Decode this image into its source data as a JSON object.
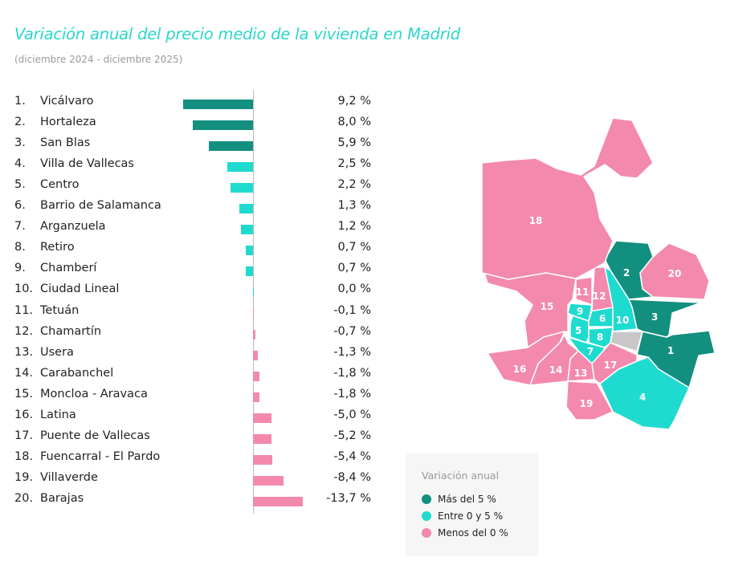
{
  "title": "Variación anual del precio medio de la vivienda en Madrid",
  "subtitle": "(diciembre 2024 - diciembre 2025)",
  "colors": {
    "mas_5": "#138f80",
    "entre_0_5": "#1fdbcf",
    "menos_0": "#f389ad",
    "sin_dato": "#c8c6c6",
    "title": "#2ad6cb"
  },
  "chart_data": {
    "type": "bar",
    "orientation": "horizontal",
    "categories": [
      "Vicálvaro",
      "Hortaleza",
      "San Blas",
      "Villa de Vallecas",
      "Centro",
      "Barrio de Salamanca",
      "Arganzuela",
      "Retiro",
      "Chamberí",
      "Ciudad Lineal",
      "Tetuán",
      "Chamartín",
      "Usera",
      "Carabanchel",
      "Moncloa - Aravaca",
      "Latina",
      "Puente de Vallecas",
      "Fuencarral - El Pardo",
      "Villaverde",
      "Barajas"
    ],
    "ranks": [
      "1.",
      "2.",
      "3.",
      "4.",
      "5.",
      "6.",
      "7.",
      "8.",
      "9.",
      "10.",
      "11.",
      "12.",
      "13.",
      "14.",
      "15.",
      "16.",
      "17.",
      "18.",
      "19.",
      "20."
    ],
    "values": [
      9.2,
      8.0,
      5.9,
      2.5,
      2.2,
      1.3,
      1.2,
      0.7,
      0.7,
      0.0,
      -0.1,
      -0.7,
      -1.3,
      -1.8,
      -1.8,
      -5.0,
      -5.2,
      -5.4,
      -8.4,
      -13.7
    ],
    "labels": [
      "9,2 %",
      "8,0 %",
      "5,9 %",
      "2,5 %",
      "2,2 %",
      "1,3 %",
      "1,2 %",
      "0,7 %",
      "0,7 %",
      "0,0 %",
      "-0,1 %",
      "-0,7 %",
      "-1,3 %",
      "-1,8 %",
      "-1,8 %",
      "-5,0 %",
      "-5,2 %",
      "-5,4 %",
      "-8,4 %",
      "-13,7 %"
    ],
    "note": "positive values extend left, negative values extend right"
  },
  "legend": {
    "title": "Variación anual",
    "items": [
      {
        "label": "Más del 5 %",
        "key": "mas_5"
      },
      {
        "label": "Entre 0 y 5 %",
        "key": "entre_0_5"
      },
      {
        "label": "Menos del 0 %",
        "key": "menos_0"
      }
    ]
  },
  "map": {
    "districts": [
      {
        "num": "1",
        "cat": "mas_5"
      },
      {
        "num": "2",
        "cat": "mas_5"
      },
      {
        "num": "3",
        "cat": "mas_5"
      },
      {
        "num": "4",
        "cat": "entre_0_5"
      },
      {
        "num": "5",
        "cat": "entre_0_5"
      },
      {
        "num": "6",
        "cat": "entre_0_5"
      },
      {
        "num": "7",
        "cat": "entre_0_5"
      },
      {
        "num": "8",
        "cat": "entre_0_5"
      },
      {
        "num": "9",
        "cat": "entre_0_5"
      },
      {
        "num": "10",
        "cat": "entre_0_5"
      },
      {
        "num": "11",
        "cat": "menos_0"
      },
      {
        "num": "12",
        "cat": "menos_0"
      },
      {
        "num": "13",
        "cat": "menos_0"
      },
      {
        "num": "14",
        "cat": "menos_0"
      },
      {
        "num": "15",
        "cat": "menos_0"
      },
      {
        "num": "16",
        "cat": "menos_0"
      },
      {
        "num": "17",
        "cat": "menos_0"
      },
      {
        "num": "18",
        "cat": "menos_0"
      },
      {
        "num": "19",
        "cat": "menos_0"
      },
      {
        "num": "20",
        "cat": "menos_0"
      }
    ]
  }
}
